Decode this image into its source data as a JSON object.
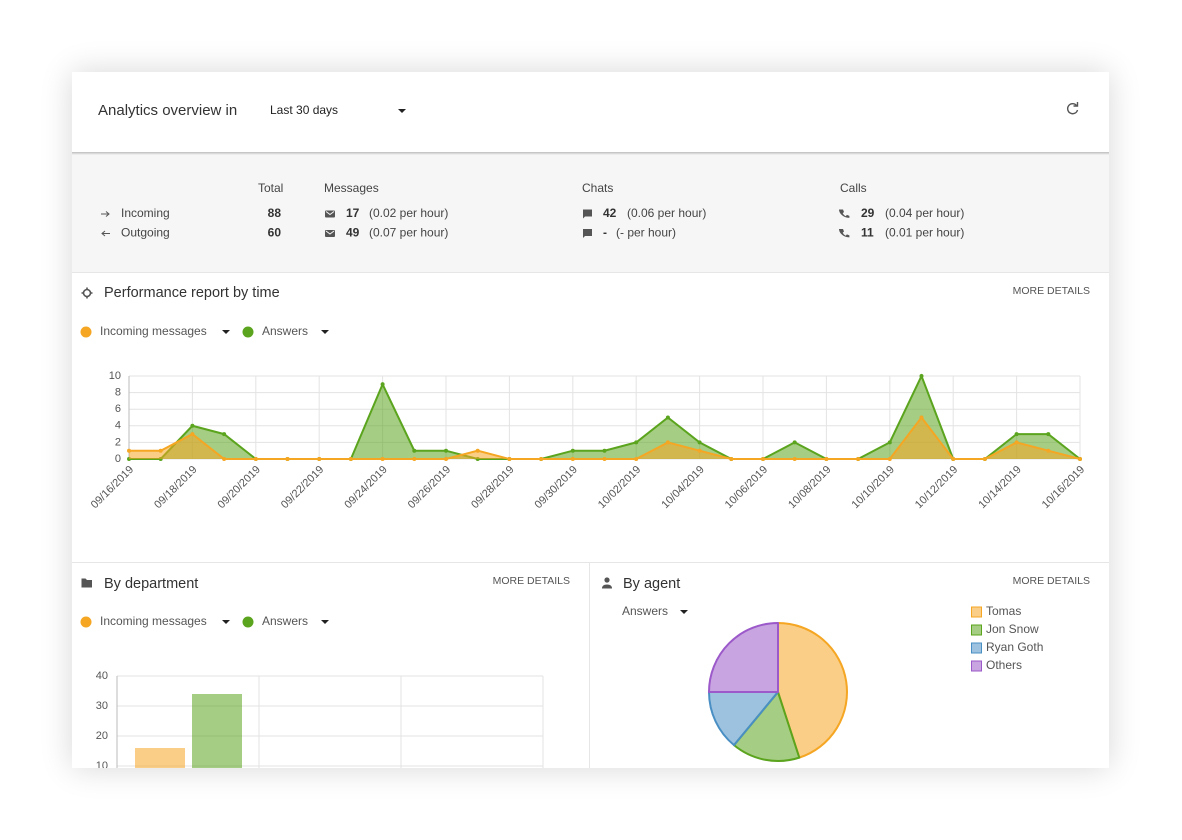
{
  "header": {
    "title": "Analytics overview in",
    "period": "Last 30 days"
  },
  "stats": {
    "columns": [
      "Total",
      "Messages",
      "Chats",
      "Calls"
    ],
    "rows": [
      {
        "label": "Incoming",
        "total": 88,
        "messages": 17,
        "messages_rate": "(0.02 per hour)",
        "chats": 42,
        "chats_rate": "(0.06 per hour)",
        "calls": 29,
        "calls_rate": "(0.04 per hour)"
      },
      {
        "label": "Outgoing",
        "total": 60,
        "messages": 49,
        "messages_rate": "(0.07 per hour)",
        "chats": "-",
        "chats_rate": "(- per hour)",
        "calls": 11,
        "calls_rate": "(0.01 per hour)"
      }
    ]
  },
  "chart_data": [
    {
      "type": "area",
      "title": "Performance report by time",
      "link": "MORE DETAILS",
      "categories": [
        "09/16/2019",
        null,
        "09/18/2019",
        null,
        "09/20/2019",
        null,
        "09/22/2019",
        null,
        "09/24/2019",
        null,
        "09/26/2019",
        null,
        "09/28/2019",
        null,
        "09/30/2019",
        null,
        "10/02/2019",
        null,
        "10/04/2019",
        null,
        "10/06/2019",
        null,
        "10/08/2019",
        null,
        "10/10/2019",
        null,
        "10/12/2019",
        null,
        "10/14/2019",
        null,
        "10/16/2019"
      ],
      "series": [
        {
          "name": "Incoming messages",
          "color": "#f5a623",
          "values": [
            1,
            1,
            3,
            0,
            0,
            0,
            0,
            0,
            0,
            0,
            0,
            1,
            0,
            0,
            0,
            0,
            0,
            2,
            1,
            0,
            0,
            0,
            0,
            0,
            0,
            5,
            0,
            0,
            2,
            1,
            0
          ]
        },
        {
          "name": "Answers",
          "color": "#5ba41e",
          "values": [
            0,
            0,
            4,
            3,
            0,
            0,
            0,
            0,
            9,
            1,
            1,
            0,
            0,
            0,
            1,
            1,
            2,
            5,
            2,
            0,
            0,
            2,
            0,
            0,
            2,
            10,
            0,
            0,
            3,
            3,
            0
          ]
        }
      ],
      "ylim": [
        0,
        10
      ],
      "yticks": [
        0,
        2,
        4,
        6,
        8,
        10
      ],
      "grid": true
    },
    {
      "type": "bar",
      "title": "By department",
      "link": "MORE DETAILS",
      "categories": [
        null
      ],
      "series": [
        {
          "name": "Incoming messages",
          "color": "#f5a623",
          "values": [
            16
          ]
        },
        {
          "name": "Answers",
          "color": "#5ba41e",
          "values": [
            34
          ]
        }
      ],
      "ylim": [
        0,
        40
      ],
      "yticks": [
        10,
        20,
        30,
        40
      ],
      "grid": true
    },
    {
      "type": "pie",
      "title": "By agent",
      "link": "MORE DETAILS",
      "selector": "Answers",
      "categories": [
        "Tomas",
        "Jon Snow",
        "Ryan Goth",
        "Others"
      ],
      "values": [
        45,
        16,
        14,
        25
      ],
      "colors": [
        "#f5a623",
        "#5ba41e",
        "#4a8fc4",
        "#9b59c9"
      ]
    }
  ]
}
